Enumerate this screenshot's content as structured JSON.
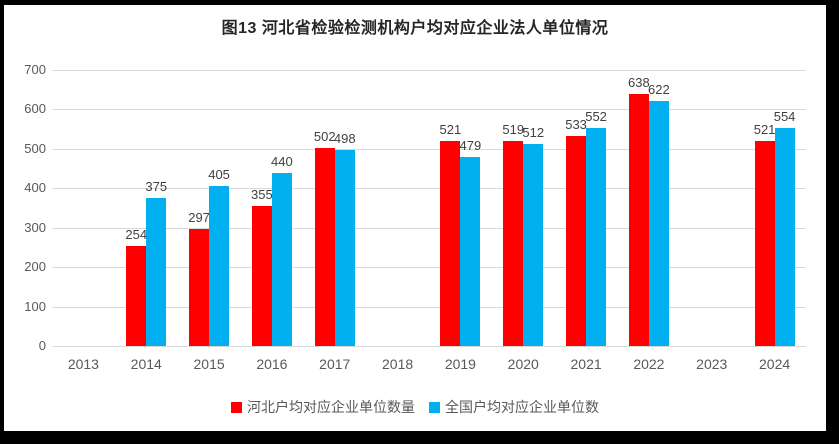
{
  "chart_data": {
    "type": "bar",
    "title": "图13 河北省检验检测机构户均对应企业法人单位情况",
    "categories": [
      "2013",
      "2014",
      "2015",
      "2016",
      "2017",
      "2018",
      "2019",
      "2020",
      "2021",
      "2022",
      "2023",
      "2024"
    ],
    "series": [
      {
        "name": "河北户均对应企业单位数量",
        "color": "#ff0000",
        "values": [
          null,
          254,
          297,
          355,
          502,
          null,
          521,
          519,
          533,
          638,
          null,
          521
        ]
      },
      {
        "name": "全国户均对应企业单位数",
        "color": "#00b0f0",
        "values": [
          null,
          375,
          405,
          440,
          498,
          null,
          479,
          512,
          552,
          622,
          null,
          554
        ]
      }
    ],
    "xlabel": "",
    "ylabel": "",
    "ylim": [
      0,
      700
    ],
    "ytick_step": 100,
    "grid": "horizontal",
    "legend_position": "bottom",
    "value_labels": "shown above bars"
  },
  "style": {
    "gridline_color": "#d9d9d9",
    "axis_text_color": "#595959",
    "value_label_color": "#404040",
    "title_color": "#262626",
    "frame_color": "#000000",
    "background_color": "#ffffff"
  }
}
